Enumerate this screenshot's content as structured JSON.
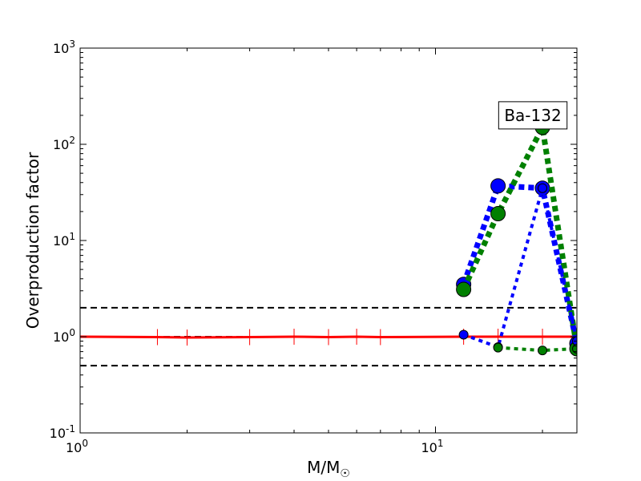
{
  "chart_data": {
    "type": "line",
    "title": "",
    "xlabel": "M/M",
    "xlabel_sub": "☉",
    "ylabel": "Overproduction factor",
    "xscale": "log",
    "yscale": "log",
    "xlim": [
      1,
      25
    ],
    "ylim": [
      0.1,
      1000
    ],
    "grid": false,
    "x_ticks": [
      {
        "value": 1,
        "base": "10",
        "exp": "0"
      },
      {
        "value": 10,
        "base": "10",
        "exp": "1"
      }
    ],
    "y_ticks": [
      {
        "value": 0.1,
        "base": "10",
        "exp": "-1"
      },
      {
        "value": 1,
        "base": "10",
        "exp": "0"
      },
      {
        "value": 10,
        "base": "10",
        "exp": "1"
      },
      {
        "value": 100,
        "base": "10",
        "exp": "2"
      },
      {
        "value": 1000,
        "base": "10",
        "exp": "3"
      }
    ],
    "reference_lines": [
      {
        "y": 2.0,
        "color": "#000000",
        "style": "dashed"
      },
      {
        "y": 1.0,
        "color": "#000000",
        "style": "dashed"
      },
      {
        "y": 0.5,
        "color": "#000000",
        "style": "dashed"
      }
    ],
    "annotation": {
      "text": "Ba-132",
      "x": 20,
      "y": 200
    },
    "series": [
      {
        "color": "#ff0000",
        "style": "solid",
        "width": 3,
        "marker": "vbar",
        "x": [
          1,
          1.65,
          2,
          3,
          4,
          5,
          6,
          7,
          12,
          15,
          20,
          25
        ],
        "y": [
          1.0,
          0.99,
          0.98,
          0.99,
          1.0,
          0.99,
          1.0,
          0.99,
          1.0,
          1.0,
          1.0,
          1.0
        ]
      },
      {
        "color": "#0000ff",
        "style": "dotted",
        "width": 7,
        "marker": "circle-large",
        "x": [
          12,
          15,
          20,
          25
        ],
        "y": [
          3.5,
          37,
          35,
          0.85
        ]
      },
      {
        "color": "#008000",
        "style": "dotted",
        "width": 7,
        "marker": "circle-large",
        "x": [
          12,
          15,
          20,
          25
        ],
        "y": [
          3.1,
          19,
          150,
          0.75
        ]
      },
      {
        "color": "#0000ff",
        "style": "dotted",
        "width": 4,
        "marker": "circle-small",
        "x": [
          12,
          15,
          20,
          25
        ],
        "y": [
          1.05,
          0.78,
          35,
          0.9
        ]
      },
      {
        "color": "#008000",
        "style": "dotted",
        "width": 4,
        "marker": "circle-small",
        "x": [
          15,
          20,
          25
        ],
        "y": [
          0.77,
          0.72,
          0.75
        ]
      }
    ]
  }
}
